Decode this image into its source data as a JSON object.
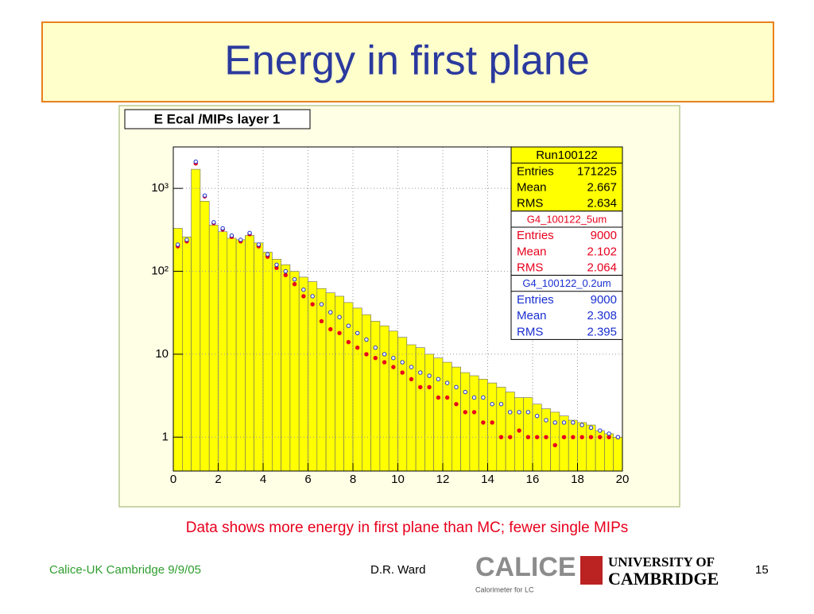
{
  "slide": {
    "title": "Energy in first plane",
    "caption": "Data shows more energy in first plane than MC; fewer single MIPs",
    "footer_left": "Calice-UK Cambridge 9/9/05",
    "footer_center": "D.R. Ward",
    "page": "15",
    "logo_calice": "CALICE",
    "logo_calice_sub": "Calorimeter for LC",
    "logo_univ_1": "UNIVERSITY OF",
    "logo_univ_2": "CAMBRIDGE"
  },
  "chart_data": {
    "type": "histogram",
    "title": "E Ecal /MIPs layer 1",
    "log_y": true,
    "grid": true,
    "bins": [
      0,
      0.4,
      0.8,
      1.2,
      1.6,
      2,
      2.4,
      2.8,
      3.2,
      3.6,
      4,
      4.4,
      4.8,
      5.2,
      5.6,
      6,
      6.4,
      6.8,
      7.2,
      7.6,
      8,
      8.4,
      8.8,
      9.2,
      9.6,
      10,
      10.4,
      10.8,
      11.2,
      11.6,
      12,
      12.4,
      12.8,
      13.2,
      13.6,
      14,
      14.4,
      14.8,
      15.2,
      15.6,
      16,
      16.4,
      16.8,
      17.2,
      17.6,
      18,
      18.4,
      18.8,
      19.2,
      19.6,
      20
    ],
    "counts": [
      330,
      260,
      1700,
      700,
      360,
      300,
      250,
      240,
      270,
      220,
      170,
      140,
      120,
      100,
      85,
      75,
      62,
      55,
      50,
      42,
      36,
      30,
      25,
      22,
      19,
      16,
      13,
      12,
      10,
      9,
      8,
      7,
      6,
      5.5,
      5,
      4.5,
      4,
      3.5,
      3,
      3,
      2.5,
      2.2,
      2,
      1.8,
      1.6,
      1.5,
      1.4,
      1.2,
      1.1,
      1
    ],
    "color": "#ffff00",
    "series": [
      {
        "name": "G4_100122_5um",
        "color": "#e8001c",
        "values": [
          200,
          230,
          2000,
          800,
          380,
          320,
          260,
          230,
          280,
          200,
          150,
          110,
          90,
          70,
          50,
          40,
          25,
          20,
          18,
          14,
          12,
          10,
          9,
          8,
          7,
          6,
          5,
          4,
          4,
          3,
          3,
          2.5,
          2,
          2,
          1.5,
          1.5,
          1,
          1,
          1.2,
          1,
          1,
          1,
          0.8,
          1,
          1,
          1,
          1,
          1,
          1,
          1
        ]
      },
      {
        "name": "G4_100122_0.2um",
        "color": "#1a2fd0",
        "values": [
          210,
          240,
          2100,
          820,
          390,
          330,
          270,
          240,
          290,
          210,
          160,
          120,
          100,
          80,
          60,
          50,
          40,
          32,
          28,
          22,
          18,
          15,
          12,
          10,
          9,
          8,
          7,
          6,
          5.5,
          5,
          4.5,
          4,
          3.5,
          3,
          3,
          2.5,
          2.5,
          2,
          2,
          2,
          1.8,
          1.6,
          1.5,
          1.5,
          1.5,
          1.4,
          1.3,
          1.2,
          1.1,
          1.0
        ]
      }
    ],
    "xlim": [
      0,
      20
    ],
    "xticks": [
      0,
      2,
      4,
      6,
      8,
      10,
      12,
      14,
      16,
      18,
      20
    ],
    "ylim": [
      0.39,
      3160
    ],
    "yticks": [
      1,
      10,
      {
        "value": 100,
        "label": "10²"
      },
      {
        "value": 1000,
        "label": "10³"
      }
    ],
    "stats": [
      {
        "title": "Run100122",
        "color": "#000000",
        "rows": [
          [
            "Entries",
            "171225"
          ],
          [
            "Mean",
            "2.667"
          ],
          [
            "RMS",
            "2.634"
          ]
        ]
      },
      {
        "title": "G4_100122_5um",
        "color": "#e8001c",
        "rows": [
          [
            "Entries",
            "9000"
          ],
          [
            "Mean",
            "2.102"
          ],
          [
            "RMS",
            "2.064"
          ]
        ]
      },
      {
        "title": "G4_100122_0.2um",
        "color": "#1a2fd0",
        "rows": [
          [
            "Entries",
            "9000"
          ],
          [
            "Mean",
            "2.308"
          ],
          [
            "RMS",
            "2.395"
          ]
        ]
      }
    ]
  }
}
